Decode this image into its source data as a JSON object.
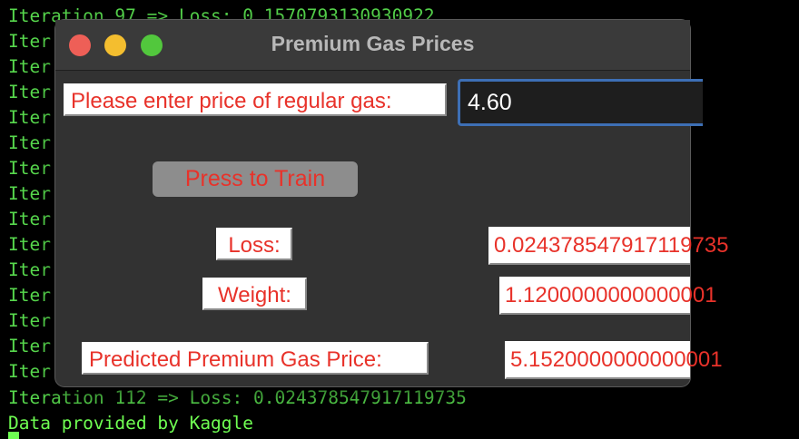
{
  "terminal": {
    "top_partial_line": "Iteration 97 => Loss: 0.1570793130930922",
    "iter_prefix": "Iter",
    "last_iteration_line": "Iteration 112 => Loss: 0.024378547917119735",
    "credit_line": "Data provided by Kaggle",
    "text_color": "#57d84d"
  },
  "window": {
    "title": "Premium Gas Prices",
    "close_icon": "red-circle",
    "minimize_icon": "yellow-circle",
    "maximize_icon": "green-circle"
  },
  "form": {
    "regular_gas_label": "Please enter price of regular gas:",
    "regular_gas_value": "4.60",
    "train_button_label": "Press to Train",
    "loss_label": "Loss:",
    "loss_value": "0.024378547917119735",
    "weight_label": "Weight:",
    "weight_value": "1.1200000000000001",
    "predicted_label": "Predicted Premium Gas Price:",
    "predicted_value": "5.1520000000000001"
  },
  "colors": {
    "label_text": "#e8322a",
    "input_focus_border": "#3d6fb5",
    "window_bg": "#323232"
  }
}
